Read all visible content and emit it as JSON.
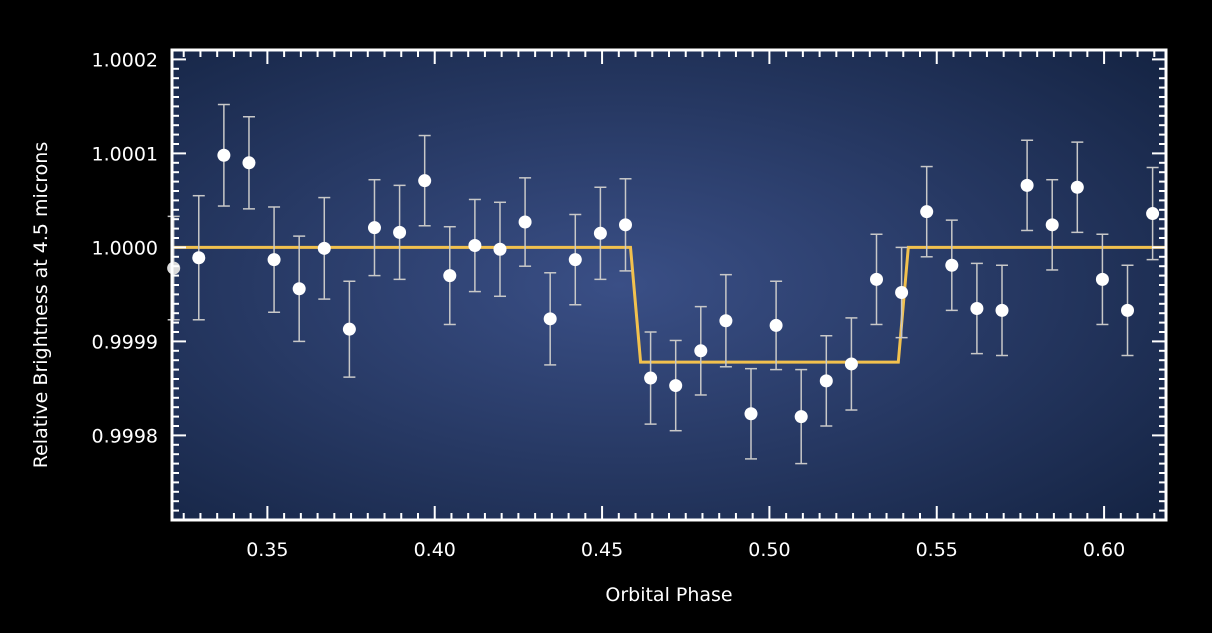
{
  "chart_data": {
    "type": "scatter",
    "title": "",
    "xlabel": "Orbital Phase",
    "ylabel": "Relative Brightness at 4.5 microns",
    "xlim": [
      0.3215,
      0.6185
    ],
    "ylim": [
      0.99971,
      1.00021
    ],
    "xticks": [
      {
        "value": 0.35,
        "label": "0.35"
      },
      {
        "value": 0.4,
        "label": "0.40"
      },
      {
        "value": 0.45,
        "label": "0.45"
      },
      {
        "value": 0.5,
        "label": "0.50"
      },
      {
        "value": 0.55,
        "label": "0.55"
      },
      {
        "value": 0.6,
        "label": "0.60"
      }
    ],
    "yticks": [
      {
        "value": 0.9998,
        "label": "0.9998"
      },
      {
        "value": 0.9999,
        "label": "0.9999"
      },
      {
        "value": 1.0,
        "label": "1.0000"
      },
      {
        "value": 1.0001,
        "label": "1.0001"
      },
      {
        "value": 1.0002,
        "label": "1.0002"
      }
    ],
    "grid": false,
    "series": [
      {
        "kind": "points_with_errorbars",
        "color": "#ffffff",
        "error_color": "#c8c8c8",
        "points": [
          {
            "x": 0.322,
            "y": 0.999978,
            "err": 5.5e-05
          },
          {
            "x": 0.3295,
            "y": 0.999989,
            "err": 6.6e-05
          },
          {
            "x": 0.337,
            "y": 1.000098,
            "err": 5.4e-05
          },
          {
            "x": 0.3445,
            "y": 1.00009,
            "err": 4.9e-05
          },
          {
            "x": 0.352,
            "y": 0.999987,
            "err": 5.6e-05
          },
          {
            "x": 0.3595,
            "y": 0.999956,
            "err": 5.6e-05
          },
          {
            "x": 0.367,
            "y": 0.999999,
            "err": 5.4e-05
          },
          {
            "x": 0.3745,
            "y": 0.999913,
            "err": 5.1e-05
          },
          {
            "x": 0.382,
            "y": 1.000021,
            "err": 5.1e-05
          },
          {
            "x": 0.3895,
            "y": 1.000016,
            "err": 5e-05
          },
          {
            "x": 0.397,
            "y": 1.000071,
            "err": 4.8e-05
          },
          {
            "x": 0.4045,
            "y": 0.99997,
            "err": 5.2e-05
          },
          {
            "x": 0.412,
            "y": 1.000002,
            "err": 4.9e-05
          },
          {
            "x": 0.4195,
            "y": 0.999998,
            "err": 5e-05
          },
          {
            "x": 0.427,
            "y": 1.000027,
            "err": 4.7e-05
          },
          {
            "x": 0.4345,
            "y": 0.999924,
            "err": 4.9e-05
          },
          {
            "x": 0.442,
            "y": 0.999987,
            "err": 4.8e-05
          },
          {
            "x": 0.4495,
            "y": 1.000015,
            "err": 4.9e-05
          },
          {
            "x": 0.457,
            "y": 1.000024,
            "err": 4.9e-05
          },
          {
            "x": 0.4645,
            "y": 0.999861,
            "err": 4.9e-05
          },
          {
            "x": 0.472,
            "y": 0.999853,
            "err": 4.8e-05
          },
          {
            "x": 0.4795,
            "y": 0.99989,
            "err": 4.7e-05
          },
          {
            "x": 0.487,
            "y": 0.999922,
            "err": 4.9e-05
          },
          {
            "x": 0.4945,
            "y": 0.999823,
            "err": 4.8e-05
          },
          {
            "x": 0.502,
            "y": 0.999917,
            "err": 4.7e-05
          },
          {
            "x": 0.5095,
            "y": 0.99982,
            "err": 5e-05
          },
          {
            "x": 0.517,
            "y": 0.999858,
            "err": 4.8e-05
          },
          {
            "x": 0.5245,
            "y": 0.999876,
            "err": 4.9e-05
          },
          {
            "x": 0.532,
            "y": 0.999966,
            "err": 4.8e-05
          },
          {
            "x": 0.5395,
            "y": 0.999952,
            "err": 4.8e-05
          },
          {
            "x": 0.547,
            "y": 1.000038,
            "err": 4.8e-05
          },
          {
            "x": 0.5545,
            "y": 0.999981,
            "err": 4.8e-05
          },
          {
            "x": 0.562,
            "y": 0.999935,
            "err": 4.8e-05
          },
          {
            "x": 0.5695,
            "y": 0.999933,
            "err": 4.8e-05
          },
          {
            "x": 0.577,
            "y": 1.000066,
            "err": 4.8e-05
          },
          {
            "x": 0.5845,
            "y": 1.000024,
            "err": 4.8e-05
          },
          {
            "x": 0.592,
            "y": 1.000064,
            "err": 4.8e-05
          },
          {
            "x": 0.5995,
            "y": 0.999966,
            "err": 4.8e-05
          },
          {
            "x": 0.607,
            "y": 0.999933,
            "err": 4.8e-05
          },
          {
            "x": 0.6145,
            "y": 1.000036,
            "err": 4.9e-05
          }
        ]
      },
      {
        "kind": "model_line",
        "color": "#f2c14e",
        "points": [
          {
            "x": 0.3215,
            "y": 1.0
          },
          {
            "x": 0.4585,
            "y": 1.0
          },
          {
            "x": 0.4615,
            "y": 0.999878
          },
          {
            "x": 0.5385,
            "y": 0.999878
          },
          {
            "x": 0.5415,
            "y": 1.0
          },
          {
            "x": 0.6185,
            "y": 1.0
          }
        ]
      }
    ],
    "colors": {
      "background": "#000000",
      "plot_center": "#3a4f86",
      "plot_edge": "#142342",
      "frame": "#ffffff"
    }
  }
}
